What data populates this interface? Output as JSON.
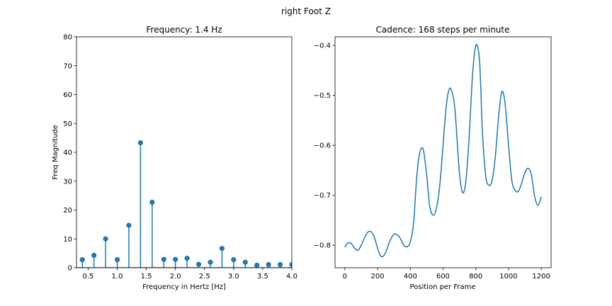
{
  "figure": {
    "suptitle": "right Foot Z"
  },
  "chart_data": [
    {
      "type": "stem",
      "title": "Frequency: 1.4 Hz",
      "xlabel": "Frequency in Hertz [Hz]",
      "ylabel": "Freq Magnitude",
      "xlim": [
        0.3,
        4.0
      ],
      "ylim": [
        0,
        80
      ],
      "xticks": [
        0.5,
        1.0,
        1.5,
        2.0,
        2.5,
        3.0,
        3.5,
        4.0
      ],
      "xtick_labels": [
        "0.5",
        "1.0",
        "1.5",
        "2.0",
        "2.5",
        "3.0",
        "3.5",
        "4.0"
      ],
      "yticks": [
        0,
        10,
        20,
        30,
        40,
        50,
        60,
        70,
        80
      ],
      "ytick_labels": [
        "0",
        "10",
        "20",
        "30",
        "40",
        "50",
        "60",
        "70",
        "80"
      ],
      "colors": {
        "stem": "#1f77b4",
        "baseline": "#d62728"
      },
      "x": [
        0.4,
        0.6,
        0.8,
        1.0,
        1.2,
        1.4,
        1.6,
        1.8,
        2.0,
        2.2,
        2.4,
        2.6,
        2.8,
        3.0,
        3.2,
        3.4,
        3.6,
        3.8,
        4.0
      ],
      "y": [
        2.8,
        4.3,
        10.0,
        2.8,
        14.7,
        43.3,
        22.7,
        2.9,
        2.9,
        3.3,
        1.2,
        1.9,
        6.7,
        2.8,
        1.9,
        0.9,
        1.1,
        1.1,
        1.1
      ]
    },
    {
      "type": "line",
      "title": "Cadence: 168 steps per minute",
      "xlabel": "Position per Frame",
      "ylabel": "",
      "xlim": [
        -60,
        1260
      ],
      "ylim": [
        -0.845,
        -0.383
      ],
      "xticks": [
        0,
        200,
        400,
        600,
        800,
        1000,
        1200
      ],
      "xtick_labels": [
        "0",
        "200",
        "400",
        "600",
        "800",
        "1000",
        "1200"
      ],
      "yticks": [
        -0.8,
        -0.7,
        -0.6,
        -0.5,
        -0.4
      ],
      "ytick_labels": [
        "−0.8",
        "−0.7",
        "−0.6",
        "−0.5",
        "−0.4"
      ],
      "colors": {
        "line": "#1f77b4"
      },
      "x": [
        0,
        20,
        40,
        60,
        80,
        100,
        120,
        140,
        160,
        180,
        200,
        220,
        240,
        260,
        280,
        300,
        320,
        340,
        360,
        380,
        400,
        420,
        440,
        460,
        480,
        500,
        510,
        520,
        540,
        560,
        580,
        600,
        620,
        640,
        660,
        670,
        680,
        700,
        720,
        740,
        760,
        780,
        800,
        820,
        830,
        840,
        860,
        880,
        900,
        920,
        940,
        960,
        980,
        1000,
        1020,
        1040,
        1060,
        1080,
        1100,
        1120,
        1140,
        1160,
        1180,
        1200
      ],
      "y": [
        -0.804,
        -0.795,
        -0.797,
        -0.806,
        -0.81,
        -0.8,
        -0.785,
        -0.774,
        -0.773,
        -0.784,
        -0.806,
        -0.822,
        -0.82,
        -0.805,
        -0.788,
        -0.778,
        -0.779,
        -0.787,
        -0.8,
        -0.803,
        -0.793,
        -0.755,
        -0.66,
        -0.612,
        -0.61,
        -0.66,
        -0.695,
        -0.725,
        -0.74,
        -0.725,
        -0.68,
        -0.6,
        -0.52,
        -0.486,
        -0.5,
        -0.52,
        -0.56,
        -0.655,
        -0.695,
        -0.67,
        -0.58,
        -0.46,
        -0.4,
        -0.42,
        -0.48,
        -0.57,
        -0.66,
        -0.68,
        -0.67,
        -0.62,
        -0.54,
        -0.492,
        -0.52,
        -0.6,
        -0.67,
        -0.69,
        -0.692,
        -0.676,
        -0.655,
        -0.646,
        -0.66,
        -0.703,
        -0.72,
        -0.703
      ]
    }
  ]
}
